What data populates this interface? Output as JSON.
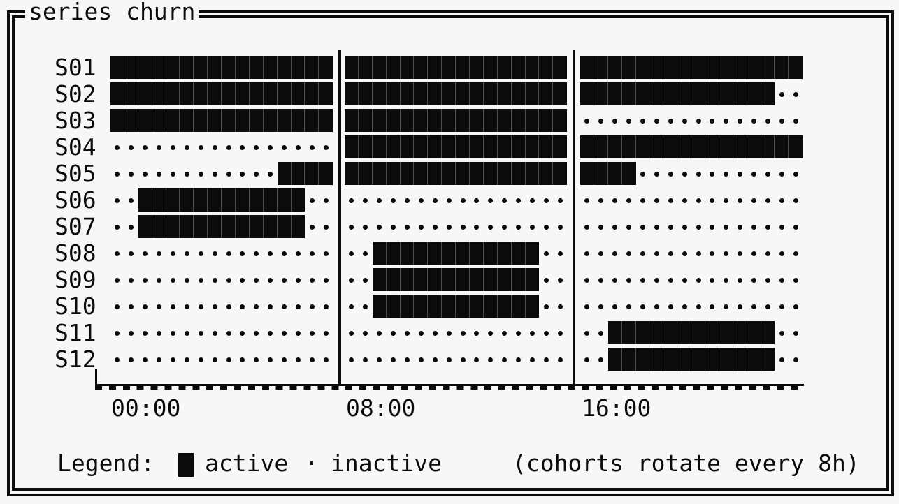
{
  "window": {
    "title": "series churn"
  },
  "colors": {
    "background": "#f7f7f7",
    "ink": "#0b0b0b"
  },
  "legend": {
    "label": "Legend:",
    "active_symbol": "█",
    "active_label": "active",
    "inactive_symbol": "·",
    "inactive_label": "inactive",
    "note": "(cohorts rotate every 8h)"
  },
  "chart_data": {
    "type": "heatmap",
    "title": "series churn",
    "description": "Binary activity timeline per series; cells are 30-minute slots across 24h split into three 8h cohort sections; # = active, . = inactive",
    "x_axis": {
      "tick_labels": [
        "00:00",
        "08:00",
        "16:00"
      ],
      "range_hours": [
        0,
        24
      ],
      "cell_minutes": 30,
      "sections": 3,
      "cells_per_section": 16
    },
    "legend": {
      "active": "active",
      "inactive": "inactive",
      "note": "(cohorts rotate every 8h)"
    },
    "rows": [
      {
        "label": "S01",
        "sections": [
          "################",
          "################",
          "################"
        ],
        "active_intervals": [
          "00:00-24:00"
        ]
      },
      {
        "label": "S02",
        "sections": [
          "################",
          "################",
          "##############.."
        ],
        "active_intervals": [
          "00:00-23:00"
        ]
      },
      {
        "label": "S03",
        "sections": [
          "################",
          "################",
          "................"
        ],
        "active_intervals": [
          "00:00-16:00"
        ]
      },
      {
        "label": "S04",
        "sections": [
          "................",
          "################",
          "################"
        ],
        "active_intervals": [
          "08:00-24:00"
        ]
      },
      {
        "label": "S05",
        "sections": [
          "............####",
          "################",
          "####............"
        ],
        "active_intervals": [
          "06:00-18:00"
        ]
      },
      {
        "label": "S06",
        "sections": [
          "..############..",
          "................",
          "................"
        ],
        "active_intervals": [
          "01:00-07:00"
        ]
      },
      {
        "label": "S07",
        "sections": [
          "..############..",
          "................",
          "................"
        ],
        "active_intervals": [
          "01:00-07:00"
        ]
      },
      {
        "label": "S08",
        "sections": [
          "................",
          "..############..",
          "................"
        ],
        "active_intervals": [
          "09:00-15:00"
        ]
      },
      {
        "label": "S09",
        "sections": [
          "................",
          "..############..",
          "................"
        ],
        "active_intervals": [
          "09:00-15:00"
        ]
      },
      {
        "label": "S10",
        "sections": [
          "................",
          "..############..",
          "................"
        ],
        "active_intervals": [
          "09:00-15:00"
        ]
      },
      {
        "label": "S11",
        "sections": [
          "................",
          "................",
          "..############.."
        ],
        "active_intervals": [
          "17:00-23:00"
        ]
      },
      {
        "label": "S12",
        "sections": [
          "................",
          "................",
          "..############.."
        ],
        "active_intervals": [
          "17:00-23:00"
        ]
      }
    ]
  }
}
